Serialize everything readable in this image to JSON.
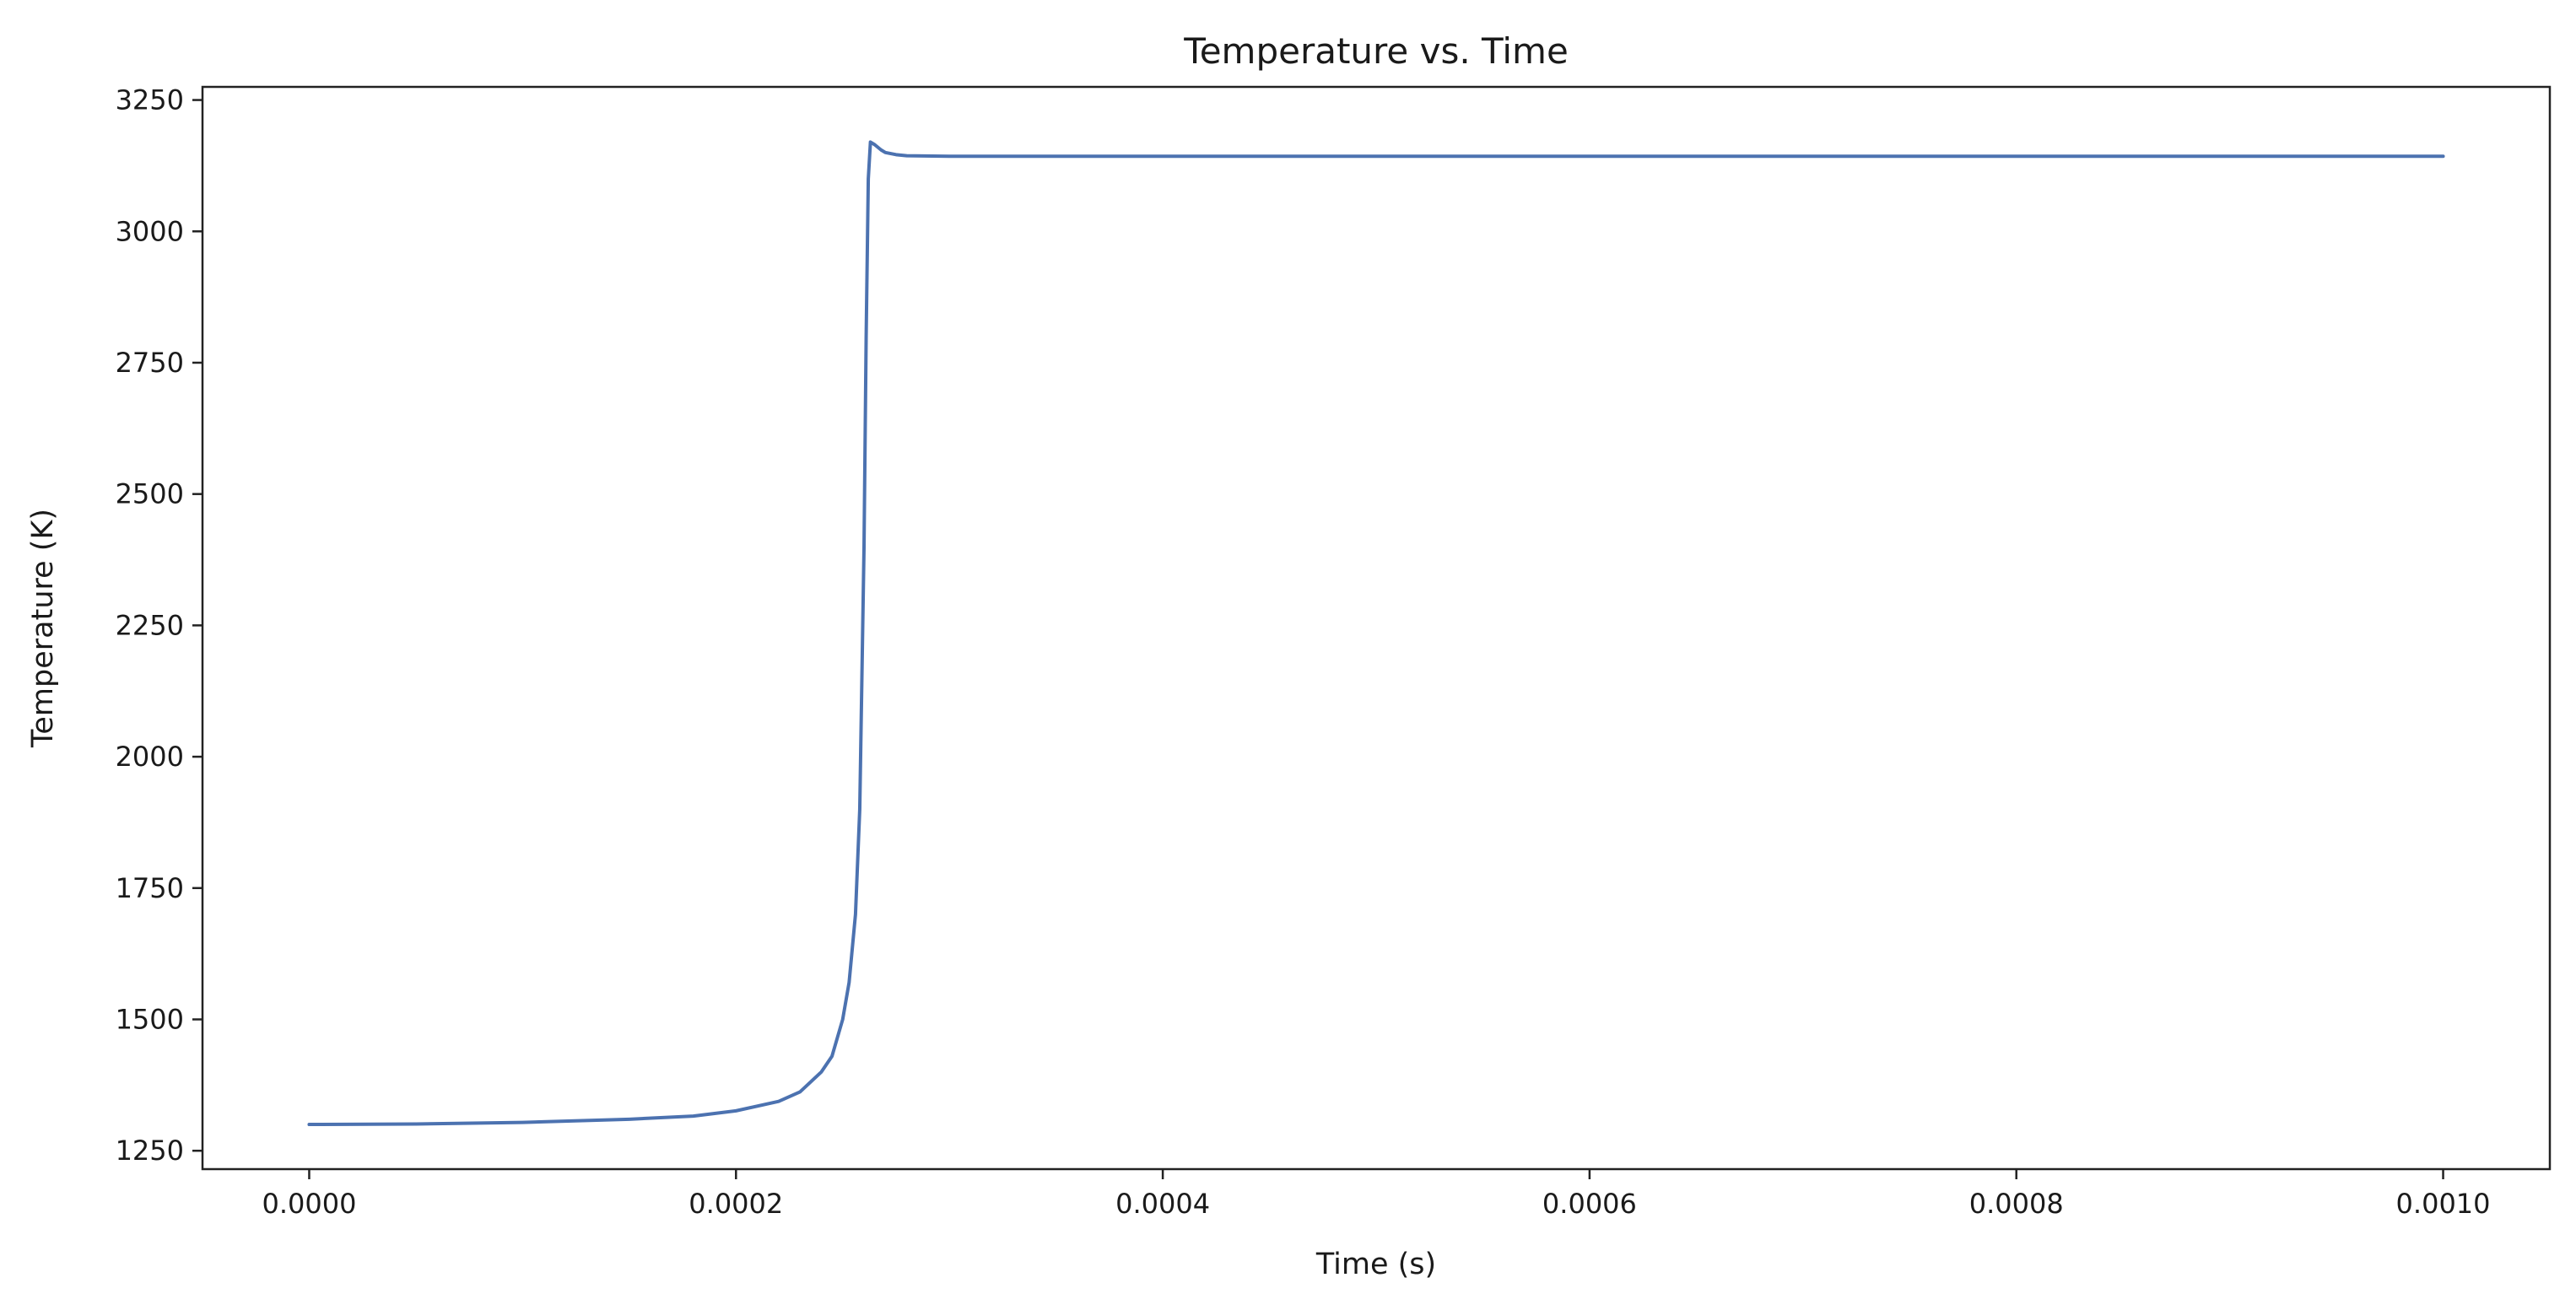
{
  "chart_data": {
    "type": "line",
    "title": "Temperature vs. Time",
    "xlabel": "Time (s)",
    "ylabel": "Temperature (K)",
    "xlim": [
      -5e-05,
      0.00105
    ],
    "ylim": [
      1215,
      3275
    ],
    "grid": false,
    "legend": "none",
    "x_ticks": [
      0.0,
      0.0002,
      0.0004,
      0.0006,
      0.0008,
      0.001
    ],
    "x_tick_labels": [
      "0.0000",
      "0.0002",
      "0.0004",
      "0.0006",
      "0.0008",
      "0.0010"
    ],
    "y_ticks": [
      1250,
      1500,
      1750,
      2000,
      2250,
      2500,
      2750,
      3000,
      3250
    ],
    "y_tick_labels": [
      "1250",
      "1500",
      "1750",
      "2000",
      "2250",
      "2500",
      "2750",
      "3000",
      "3250"
    ],
    "series": [
      {
        "color": "#4c72b0",
        "x": [
          0.0,
          5e-05,
          0.0001,
          0.00015,
          0.00018,
          0.0002,
          0.00022,
          0.00023,
          0.00024,
          0.000245,
          0.00025,
          0.000253,
          0.000256,
          0.000258,
          0.00026,
          0.000261,
          0.000262,
          0.000263,
          0.000265,
          0.000268,
          0.00027,
          0.000275,
          0.00028,
          0.0003,
          0.0004,
          0.0005,
          0.0006,
          0.0007,
          0.0008,
          0.0009,
          0.001
        ],
        "y": [
          1300,
          1301,
          1304,
          1310,
          1316,
          1326,
          1344,
          1362,
          1400,
          1430,
          1500,
          1570,
          1700,
          1900,
          2400,
          2800,
          3100,
          3170,
          3165,
          3155,
          3150,
          3146,
          3144,
          3143,
          3143,
          3143,
          3143,
          3143,
          3143,
          3143,
          3143
        ]
      }
    ]
  }
}
